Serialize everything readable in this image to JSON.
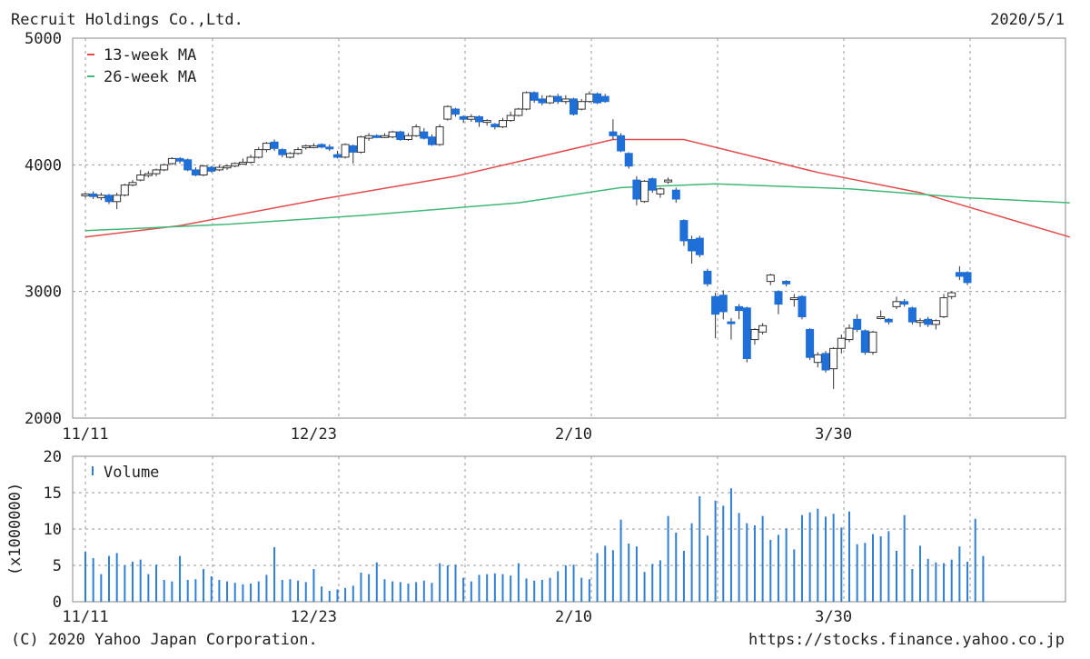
{
  "header": {
    "title": "Recruit Holdings Co.,Ltd.",
    "date": "2020/5/1"
  },
  "footer": {
    "copyright": "(C) 2020 Yahoo Japan Corporation.",
    "source_url": "https://stocks.finance.yahoo.co.jp"
  },
  "colors": {
    "up": "#ffffff",
    "down": "#1f6fd8",
    "ma13": "#e34b4b",
    "ma26": "#3fb878",
    "volume": "#2f7fd6",
    "grid": "#999999",
    "frame": "#888888"
  },
  "chart_data": [
    {
      "type": "candlestick",
      "title": "Recruit Holdings Co.,Ltd.",
      "ylim": [
        2000,
        5000
      ],
      "yticks": [
        "5000",
        "4000",
        "3000",
        "2000"
      ],
      "xticks": [
        {
          "label": "11/11",
          "index": 0
        },
        {
          "label": "12/23",
          "index": 29
        },
        {
          "label": "2/10",
          "index": 62
        },
        {
          "label": "3/30",
          "index": 95
        }
      ],
      "legend": {
        "position": "top-left",
        "entries": [
          "13-week MA",
          "26-week MA"
        ]
      },
      "grid": true,
      "series": [
        {
          "name": "13-week MA",
          "values": [
            3430,
            3520,
            3730,
            3910,
            4200,
            4200,
            3940,
            3780,
            3430
          ],
          "at_index": [
            0,
            12,
            30,
            47,
            67,
            76,
            93,
            106,
            125
          ]
        },
        {
          "name": "26-week MA",
          "values": [
            3480,
            3530,
            3600,
            3700,
            3820,
            3850,
            3810,
            3740,
            3700
          ],
          "at_index": [
            0,
            18,
            35,
            55,
            68,
            80,
            97,
            112,
            125
          ]
        }
      ],
      "candles": [
        [
          3760,
          3770,
          3740,
          3780
        ],
        [
          3770,
          3750,
          3730,
          3790
        ],
        [
          3740,
          3760,
          3720,
          3780
        ],
        [
          3760,
          3710,
          3690,
          3770
        ],
        [
          3710,
          3760,
          3650,
          3780
        ],
        [
          3760,
          3840,
          3750,
          3850
        ],
        [
          3840,
          3860,
          3830,
          3880
        ],
        [
          3880,
          3920,
          3870,
          3960
        ],
        [
          3920,
          3930,
          3900,
          3950
        ],
        [
          3930,
          3960,
          3910,
          3970
        ],
        [
          3960,
          4000,
          3950,
          4010
        ],
        [
          4010,
          4050,
          4000,
          4060
        ],
        [
          4050,
          4030,
          4010,
          4060
        ],
        [
          4040,
          3960,
          3950,
          4050
        ],
        [
          3960,
          3920,
          3910,
          3980
        ],
        [
          3920,
          3990,
          3910,
          4000
        ],
        [
          3980,
          3950,
          3940,
          3990
        ],
        [
          3960,
          3980,
          3950,
          4000
        ],
        [
          3980,
          3990,
          3960,
          4000
        ],
        [
          3990,
          4010,
          3980,
          4020
        ],
        [
          4020,
          4020,
          4000,
          4050
        ],
        [
          4020,
          4060,
          4010,
          4080
        ],
        [
          4060,
          4120,
          4050,
          4140
        ],
        [
          4120,
          4170,
          4100,
          4180
        ],
        [
          4180,
          4130,
          4110,
          4200
        ],
        [
          4120,
          4080,
          4060,
          4130
        ],
        [
          4060,
          4090,
          4050,
          4100
        ],
        [
          4090,
          4120,
          4080,
          4140
        ],
        [
          4140,
          4150,
          4120,
          4160
        ],
        [
          4150,
          4150,
          4130,
          4170
        ],
        [
          4160,
          4140,
          4130,
          4170
        ],
        [
          4140,
          4130,
          4110,
          4160
        ],
        [
          4080,
          4060,
          4050,
          4110
        ],
        [
          4060,
          4160,
          4050,
          4170
        ],
        [
          4150,
          4100,
          4010,
          4160
        ],
        [
          4100,
          4220,
          4090,
          4230
        ],
        [
          4210,
          4230,
          4190,
          4250
        ],
        [
          4230,
          4220,
          4210,
          4240
        ],
        [
          4230,
          4230,
          4210,
          4250
        ],
        [
          4220,
          4260,
          4210,
          4270
        ],
        [
          4260,
          4200,
          4190,
          4270
        ],
        [
          4200,
          4230,
          4190,
          4250
        ],
        [
          4230,
          4300,
          4220,
          4320
        ],
        [
          4260,
          4210,
          4200,
          4290
        ],
        [
          4220,
          4160,
          4150,
          4240
        ],
        [
          4160,
          4300,
          4150,
          4320
        ],
        [
          4360,
          4460,
          4350,
          4470
        ],
        [
          4440,
          4400,
          4380,
          4450
        ],
        [
          4380,
          4360,
          4330,
          4390
        ],
        [
          4360,
          4380,
          4340,
          4400
        ],
        [
          4380,
          4340,
          4300,
          4390
        ],
        [
          4340,
          4350,
          4310,
          4360
        ],
        [
          4320,
          4300,
          4280,
          4330
        ],
        [
          4300,
          4350,
          4290,
          4370
        ],
        [
          4350,
          4390,
          4340,
          4420
        ],
        [
          4390,
          4440,
          4380,
          4450
        ],
        [
          4440,
          4570,
          4430,
          4580
        ],
        [
          4570,
          4510,
          4490,
          4580
        ],
        [
          4520,
          4490,
          4470,
          4550
        ],
        [
          4490,
          4540,
          4480,
          4550
        ],
        [
          4540,
          4500,
          4480,
          4560
        ],
        [
          4500,
          4520,
          4480,
          4550
        ],
        [
          4520,
          4400,
          4390,
          4530
        ],
        [
          4440,
          4500,
          4430,
          4520
        ],
        [
          4500,
          4560,
          4490,
          4580
        ],
        [
          4560,
          4490,
          4480,
          4570
        ],
        [
          4540,
          4500,
          4490,
          4560
        ],
        [
          4260,
          4230,
          4200,
          4360
        ],
        [
          4230,
          4110,
          4100,
          4250
        ],
        [
          4090,
          3990,
          3970,
          4100
        ],
        [
          3880,
          3730,
          3680,
          3910
        ],
        [
          3710,
          3870,
          3700,
          3880
        ],
        [
          3890,
          3800,
          3780,
          3900
        ],
        [
          3770,
          3810,
          3740,
          3820
        ],
        [
          3880,
          3880,
          3850,
          3900
        ],
        [
          3800,
          3730,
          3700,
          3820
        ],
        [
          3560,
          3400,
          3360,
          3570
        ],
        [
          3410,
          3320,
          3220,
          3440
        ],
        [
          3420,
          3290,
          3270,
          3440
        ],
        [
          3160,
          3060,
          3040,
          3180
        ],
        [
          2960,
          2820,
          2630,
          2990
        ],
        [
          2970,
          2840,
          2780,
          3010
        ],
        [
          2760,
          2750,
          2620,
          2790
        ],
        [
          2880,
          2850,
          2780,
          2900
        ],
        [
          2870,
          2470,
          2440,
          2880
        ],
        [
          2620,
          2700,
          2580,
          2710
        ],
        [
          2680,
          2730,
          2660,
          2750
        ],
        [
          3080,
          3130,
          3050,
          3140
        ],
        [
          3000,
          2900,
          2820,
          3010
        ],
        [
          3080,
          3060,
          3040,
          3090
        ],
        [
          2940,
          2950,
          2880,
          2980
        ],
        [
          2960,
          2800,
          2780,
          2970
        ],
        [
          2700,
          2480,
          2460,
          2710
        ],
        [
          2440,
          2500,
          2400,
          2520
        ],
        [
          2510,
          2380,
          2360,
          2530
        ],
        [
          2390,
          2550,
          2230,
          2560
        ],
        [
          2550,
          2630,
          2510,
          2660
        ],
        [
          2620,
          2710,
          2600,
          2740
        ],
        [
          2780,
          2700,
          2680,
          2820
        ],
        [
          2690,
          2520,
          2500,
          2700
        ],
        [
          2520,
          2680,
          2500,
          2690
        ],
        [
          2800,
          2800,
          2780,
          2850
        ],
        [
          2780,
          2760,
          2740,
          2790
        ],
        [
          2880,
          2920,
          2860,
          2960
        ],
        [
          2920,
          2900,
          2880,
          2940
        ],
        [
          2870,
          2760,
          2740,
          2880
        ],
        [
          2760,
          2770,
          2720,
          2790
        ],
        [
          2780,
          2740,
          2720,
          2800
        ],
        [
          2740,
          2770,
          2700,
          2780
        ],
        [
          2800,
          2950,
          2790,
          2980
        ],
        [
          2960,
          2990,
          2940,
          3000
        ],
        [
          3150,
          3120,
          3090,
          3200
        ],
        [
          3150,
          3070,
          3050,
          3160
        ]
      ]
    },
    {
      "type": "bar",
      "ylabel": "(x1000000)",
      "ylim": [
        0,
        20
      ],
      "yticks": [
        "20",
        "15",
        "10",
        "5",
        "0"
      ],
      "xticks": [
        "11/11",
        "12/23",
        "2/10",
        "3/30"
      ],
      "legend": {
        "position": "top-left",
        "entries": [
          "Volume"
        ]
      },
      "grid": true,
      "series": [
        {
          "name": "Volume",
          "values": [
            6.9,
            6.0,
            3.8,
            6.3,
            6.7,
            5.0,
            5.5,
            5.8,
            3.8,
            5.1,
            3.0,
            2.8,
            6.3,
            3.0,
            3.1,
            4.5,
            3.5,
            3.0,
            2.8,
            2.6,
            2.4,
            2.5,
            2.8,
            3.7,
            7.5,
            3.0,
            3.1,
            2.9,
            2.7,
            4.5,
            2.1,
            1.5,
            1.7,
            1.9,
            2.2,
            4.0,
            3.8,
            5.4,
            3.1,
            2.8,
            2.7,
            2.5,
            2.7,
            2.9,
            2.6,
            5.3,
            5.0,
            5.1,
            3.3,
            2.8,
            3.7,
            3.8,
            3.9,
            3.8,
            3.6,
            5.3,
            3.2,
            2.9,
            3.0,
            3.3,
            4.2,
            5.0,
            5.1,
            3.3,
            3.1,
            6.7,
            7.7,
            7.1,
            11.3,
            8.0,
            7.6,
            4.1,
            5.2,
            5.7,
            11.8,
            9.5,
            7.0,
            10.8,
            14.5,
            9.1,
            13.9,
            13.2,
            15.6,
            12.2,
            10.8,
            10.5,
            11.8,
            8.5,
            9.2,
            10.1,
            7.2,
            11.9,
            12.3,
            12.8,
            11.7,
            12.1,
            10.2,
            12.4,
            7.9,
            8.1,
            9.3,
            9.0,
            9.7,
            7.0,
            11.9,
            4.5,
            7.7,
            5.9,
            5.4,
            5.3,
            5.8,
            7.6,
            5.5,
            11.4,
            6.3
          ]
        }
      ]
    }
  ]
}
